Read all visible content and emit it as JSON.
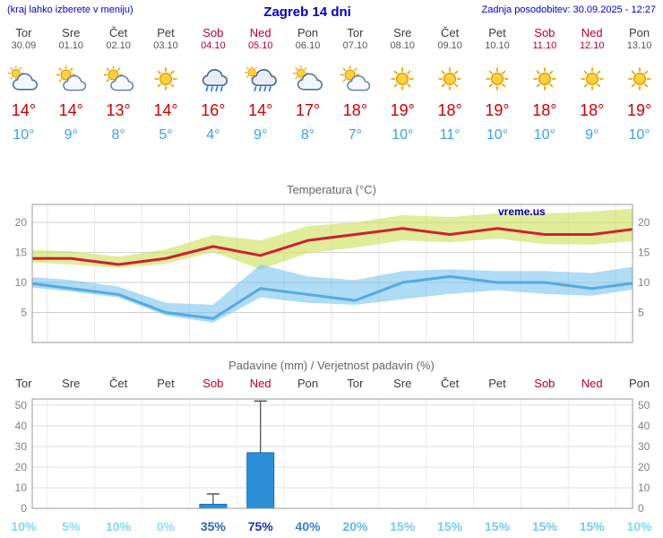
{
  "header": {
    "note": "(kraj lahko izberete v meniju)",
    "title": "Zagreb 14 dni",
    "updated": "Zadnja posodobitev: 30.09.2025 - 12:27"
  },
  "colors": {
    "accent_blue": "#0000cc",
    "temp_max_text": "#cc0000",
    "temp_min_text": "#3aa0e8",
    "weekend_red": "#b3002d",
    "grid": "#cfcfcf",
    "plot_border": "#999999"
  },
  "days": [
    {
      "name": "Tor",
      "date": "30.09",
      "icon": "cloud-sun-icon",
      "tmax": "14°",
      "tmin": "10°",
      "weekend": false
    },
    {
      "name": "Sre",
      "date": "01.10",
      "icon": "partly-sunny-icon",
      "tmax": "14°",
      "tmin": "9°",
      "weekend": false
    },
    {
      "name": "Čet",
      "date": "02.10",
      "icon": "partly-sunny-icon",
      "tmax": "13°",
      "tmin": "8°",
      "weekend": false
    },
    {
      "name": "Pet",
      "date": "03.10",
      "icon": "sunny-icon",
      "tmax": "14°",
      "tmin": "5°",
      "weekend": false
    },
    {
      "name": "Sob",
      "date": "04.10",
      "icon": "rain-icon",
      "tmax": "16°",
      "tmin": "4°",
      "weekend": true
    },
    {
      "name": "Ned",
      "date": "05.10",
      "icon": "rain-sun-icon",
      "tmax": "14°",
      "tmin": "9°",
      "weekend": true
    },
    {
      "name": "Pon",
      "date": "06.10",
      "icon": "cloud-sun-icon",
      "tmax": "17°",
      "tmin": "8°",
      "weekend": false
    },
    {
      "name": "Tor",
      "date": "07.10",
      "icon": "partly-sunny-icon",
      "tmax": "18°",
      "tmin": "7°",
      "weekend": false
    },
    {
      "name": "Sre",
      "date": "08.10",
      "icon": "sunny-icon",
      "tmax": "19°",
      "tmin": "10°",
      "weekend": false
    },
    {
      "name": "Čet",
      "date": "09.10",
      "icon": "sunny-icon",
      "tmax": "18°",
      "tmin": "11°",
      "weekend": false
    },
    {
      "name": "Pet",
      "date": "10.10",
      "icon": "sunny-icon",
      "tmax": "19°",
      "tmin": "10°",
      "weekend": false
    },
    {
      "name": "Sob",
      "date": "11.10",
      "icon": "sunny-icon",
      "tmax": "18°",
      "tmin": "10°",
      "weekend": true
    },
    {
      "name": "Ned",
      "date": "12.10",
      "icon": "sunny-icon",
      "tmax": "18°",
      "tmin": "9°",
      "weekend": true
    },
    {
      "name": "Pon",
      "date": "13.10",
      "icon": "sunny-icon",
      "tmax": "19°",
      "tmin": "10°",
      "weekend": false
    }
  ],
  "chart_data": [
    {
      "type": "line",
      "title": "Temperatura (°C)",
      "watermark": "vreme.us",
      "x_labels": [
        "Tor",
        "Sre",
        "Čet",
        "Pet",
        "Sob",
        "Ned",
        "Pon",
        "Tor",
        "Sre",
        "Čet",
        "Pet",
        "Sob",
        "Ned",
        "Pon"
      ],
      "ylim": [
        0,
        23
      ],
      "yticks": [
        5,
        10,
        15,
        20
      ],
      "series": [
        {
          "name": "tmax",
          "color": "#cc2233",
          "values": [
            14,
            14,
            13,
            14,
            16,
            14.5,
            17,
            18,
            19,
            18,
            19,
            18,
            18,
            19
          ]
        },
        {
          "name": "tmax_band_upper",
          "values": [
            15.5,
            15.2,
            14.3,
            15.5,
            17.9,
            17,
            19.4,
            20,
            21.2,
            20.9,
            21.5,
            21.5,
            21.8,
            22.4
          ]
        },
        {
          "name": "tmax_band_lower",
          "values": [
            13.4,
            13,
            12.4,
            13.1,
            15.1,
            12.2,
            14.9,
            15.8,
            17,
            16.7,
            17.3,
            16.4,
            16.3,
            17
          ]
        },
        {
          "name": "tmin",
          "color": "#55aadd",
          "values": [
            10,
            9,
            8,
            5,
            4,
            9,
            8,
            7,
            10,
            11,
            10,
            10,
            9,
            10
          ]
        },
        {
          "name": "tmin_band_upper",
          "values": [
            11,
            10.4,
            9.3,
            6.6,
            6.3,
            13,
            11,
            10.4,
            11.9,
            12.2,
            11.9,
            11.9,
            11.6,
            12.8
          ]
        },
        {
          "name": "tmin_band_lower",
          "values": [
            9.3,
            8.5,
            7.5,
            4.5,
            3.3,
            7.5,
            6.6,
            6.3,
            7.2,
            8.1,
            8.7,
            8.1,
            7.8,
            9
          ]
        }
      ],
      "band_colors": {
        "max": "rgba(208,226,100,0.65)",
        "min": "rgba(110,190,235,0.55)"
      }
    },
    {
      "type": "bar",
      "title": "Padavine (mm) / Verjetnost padavin (%)",
      "categories": [
        "Tor",
        "Sre",
        "Čet",
        "Pet",
        "Sob",
        "Ned",
        "Pon",
        "Tor",
        "Sre",
        "Čet",
        "Pet",
        "Sob",
        "Ned",
        "Pon"
      ],
      "weekend_indices": [
        4,
        5,
        11,
        12
      ],
      "values": [
        0,
        0,
        0,
        0,
        2,
        27,
        0,
        0,
        0,
        0,
        0,
        0,
        0,
        0
      ],
      "whisker_max": [
        0,
        0,
        0,
        0,
        7,
        52,
        0,
        0,
        0,
        0,
        0,
        0,
        0,
        0
      ],
      "probabilities": [
        "10%",
        "5%",
        "10%",
        "0%",
        "35%",
        "75%",
        "40%",
        "20%",
        "15%",
        "15%",
        "15%",
        "15%",
        "15%",
        "10%"
      ],
      "prob_colors": [
        "#7fd8ef",
        "#8adcf1",
        "#7fd8ef",
        "#93e0f3",
        "#2a66b5",
        "#1d33a6",
        "#3a7fc6",
        "#5fb9e2",
        "#74cdea",
        "#74cdea",
        "#74cdea",
        "#74cdea",
        "#74cdea",
        "#7fd8ef"
      ],
      "ylim": [
        0,
        53
      ],
      "yticks": [
        0,
        10,
        20,
        30,
        40,
        50
      ],
      "bar_color": "#2b8fd8",
      "bar_border": "#1a6db0"
    }
  ]
}
